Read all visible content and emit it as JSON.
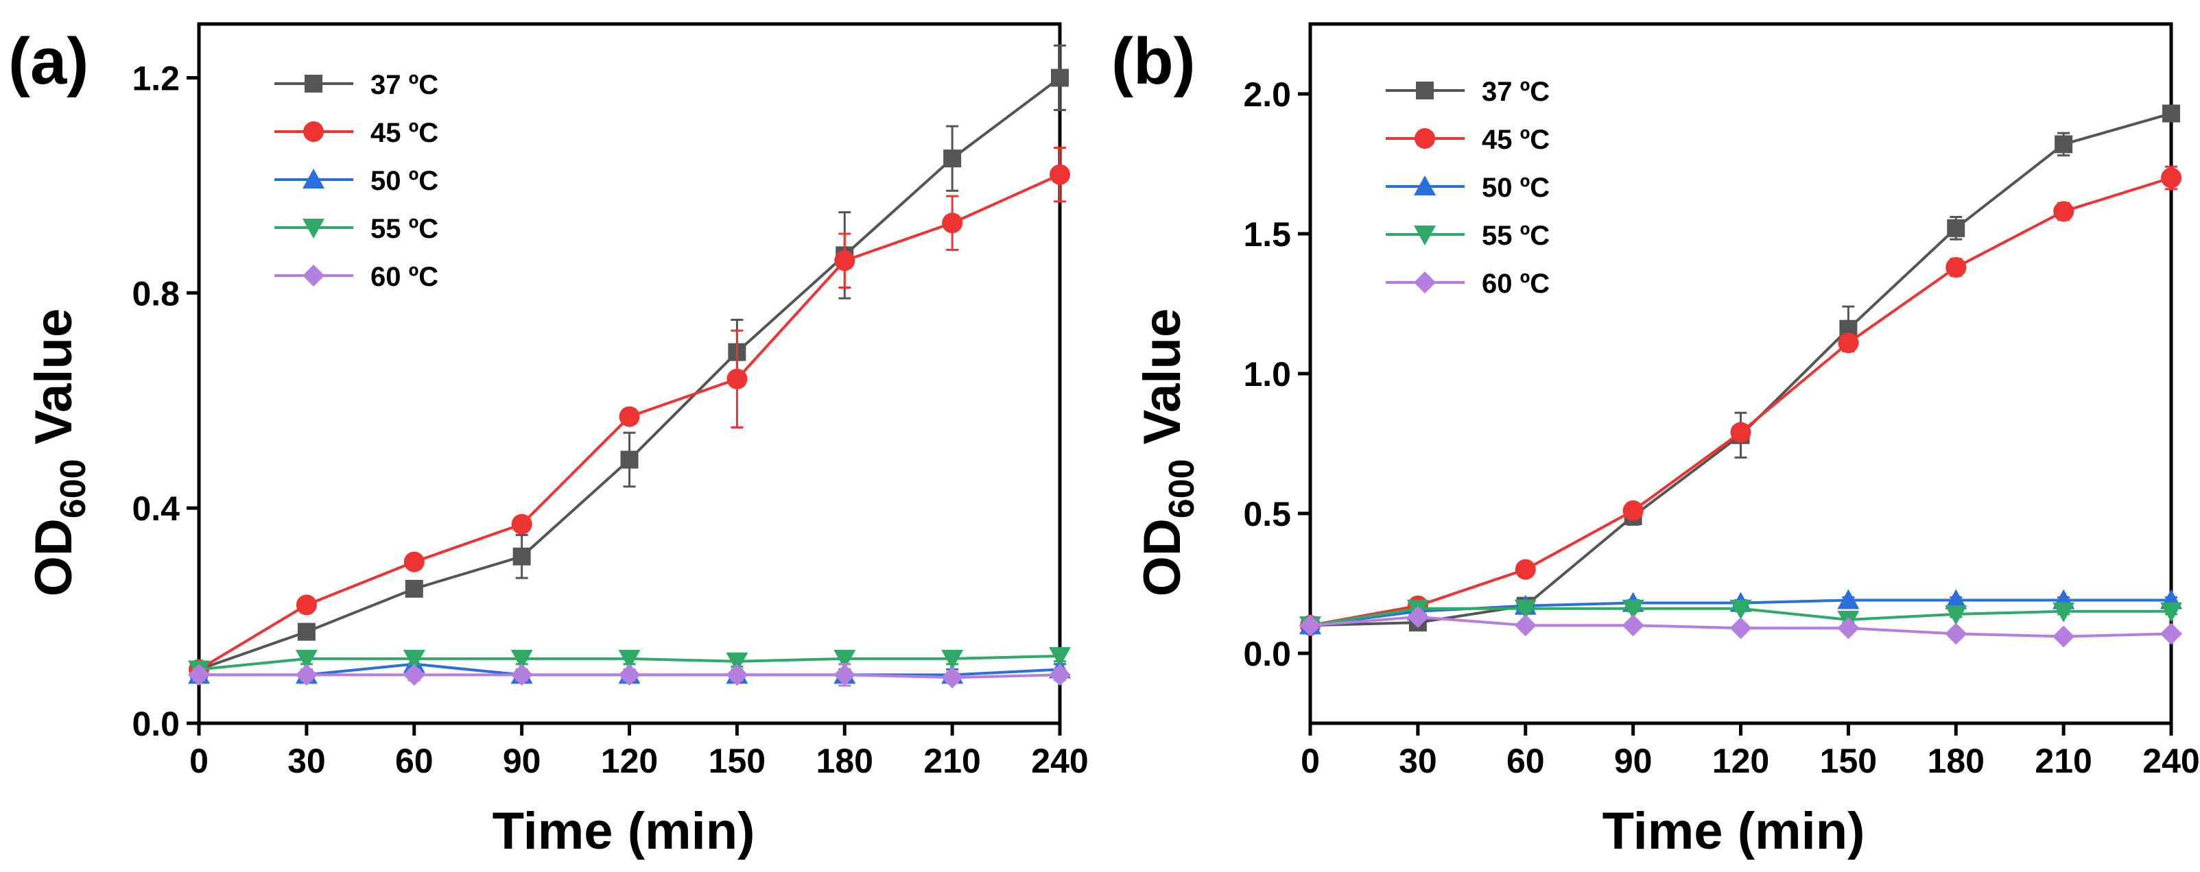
{
  "chart_data": [
    {
      "panel_label": "(a)",
      "type": "line",
      "xlabel": "Time (min)",
      "ylabel_main": "OD",
      "ylabel_sub": "600",
      "ylabel_tail": " Value",
      "x": [
        0,
        30,
        60,
        90,
        120,
        150,
        180,
        210,
        240
      ],
      "xlim": [
        0,
        240
      ],
      "ylim": [
        0,
        1.3
      ],
      "xticks": [
        0,
        30,
        60,
        90,
        120,
        150,
        180,
        210,
        240
      ],
      "yticks": [
        0.0,
        0.4,
        0.8,
        1.2
      ],
      "ytick_labels": [
        "0.0",
        "0.4",
        "0.8",
        "1.2"
      ],
      "grid": false,
      "legend_position": "top-left",
      "series": [
        {
          "name": "37 ºC",
          "color": "#555555",
          "marker": "square",
          "values": [
            0.1,
            0.17,
            0.25,
            0.31,
            0.49,
            0.69,
            0.87,
            1.05,
            1.2
          ],
          "errors": [
            0.01,
            0.01,
            0.01,
            0.04,
            0.05,
            0.06,
            0.08,
            0.06,
            0.06
          ]
        },
        {
          "name": "45 ºC",
          "color": "#ee3333",
          "marker": "circle",
          "values": [
            0.1,
            0.22,
            0.3,
            0.37,
            0.57,
            0.64,
            0.86,
            0.93,
            1.02
          ],
          "errors": [
            0.01,
            0.01,
            0.01,
            0.01,
            0.01,
            0.09,
            0.05,
            0.05,
            0.05
          ]
        },
        {
          "name": "50 ºC",
          "color": "#2a6fdb",
          "marker": "triangle-up",
          "values": [
            0.09,
            0.09,
            0.11,
            0.09,
            0.09,
            0.09,
            0.09,
            0.09,
            0.1
          ],
          "errors": [
            0.01,
            0.01,
            0.01,
            0.01,
            0.01,
            0.01,
            0.01,
            0.01,
            0.01
          ]
        },
        {
          "name": "55 ºC",
          "color": "#2eaa66",
          "marker": "triangle-down",
          "values": [
            0.1,
            0.12,
            0.12,
            0.12,
            0.12,
            0.115,
            0.12,
            0.12,
            0.125
          ],
          "errors": [
            0.01,
            0.01,
            0.01,
            0.01,
            0.01,
            0.01,
            0.01,
            0.01,
            0.01
          ]
        },
        {
          "name": "60 ºC",
          "color": "#b57fe0",
          "marker": "diamond",
          "values": [
            0.09,
            0.09,
            0.09,
            0.09,
            0.09,
            0.09,
            0.09,
            0.085,
            0.09
          ],
          "errors": [
            0.01,
            0.01,
            0.01,
            0.01,
            0.01,
            0.01,
            0.02,
            0.01,
            0.01
          ]
        }
      ]
    },
    {
      "panel_label": "(b)",
      "type": "line",
      "xlabel": "Time (min)",
      "ylabel_main": "OD",
      "ylabel_sub": "600",
      "ylabel_tail": " Value",
      "x": [
        0,
        30,
        60,
        90,
        120,
        150,
        180,
        210,
        240
      ],
      "xlim": [
        0,
        240
      ],
      "ylim": [
        -0.25,
        2.25
      ],
      "xticks": [
        0,
        30,
        60,
        90,
        120,
        150,
        180,
        210,
        240
      ],
      "yticks": [
        0.0,
        0.5,
        1.0,
        1.5,
        2.0
      ],
      "ytick_labels": [
        "0.0",
        "0.5",
        "1.0",
        "1.5",
        "2.0"
      ],
      "grid": false,
      "legend_position": "top-left",
      "series": [
        {
          "name": "37 ºC",
          "color": "#555555",
          "marker": "square",
          "values": [
            0.1,
            0.11,
            0.17,
            0.49,
            0.78,
            1.16,
            1.52,
            1.82,
            1.93
          ],
          "errors": [
            0.01,
            0.02,
            0.02,
            0.03,
            0.08,
            0.08,
            0.04,
            0.04,
            0.02
          ]
        },
        {
          "name": "45 ºC",
          "color": "#ee3333",
          "marker": "circle",
          "values": [
            0.1,
            0.17,
            0.3,
            0.51,
            0.79,
            1.11,
            1.38,
            1.58,
            1.7
          ],
          "errors": [
            0.01,
            0.01,
            0.02,
            0.02,
            0.02,
            0.02,
            0.03,
            0.03,
            0.04
          ]
        },
        {
          "name": "50 ºC",
          "color": "#2a6fdb",
          "marker": "triangle-up",
          "values": [
            0.1,
            0.15,
            0.17,
            0.18,
            0.18,
            0.19,
            0.19,
            0.19,
            0.19
          ],
          "errors": [
            0.01,
            0.01,
            0.01,
            0.01,
            0.01,
            0.01,
            0.01,
            0.01,
            0.01
          ]
        },
        {
          "name": "55 ºC",
          "color": "#2eaa66",
          "marker": "triangle-down",
          "values": [
            0.1,
            0.16,
            0.16,
            0.16,
            0.16,
            0.12,
            0.14,
            0.15,
            0.15
          ],
          "errors": [
            0.01,
            0.01,
            0.01,
            0.01,
            0.01,
            0.01,
            0.01,
            0.01,
            0.01
          ]
        },
        {
          "name": "60 ºC",
          "color": "#b57fe0",
          "marker": "diamond",
          "values": [
            0.1,
            0.13,
            0.1,
            0.1,
            0.09,
            0.09,
            0.07,
            0.06,
            0.07
          ],
          "errors": [
            0.01,
            0.01,
            0.01,
            0.01,
            0.01,
            0.01,
            0.01,
            0.01,
            0.01
          ]
        }
      ]
    }
  ]
}
